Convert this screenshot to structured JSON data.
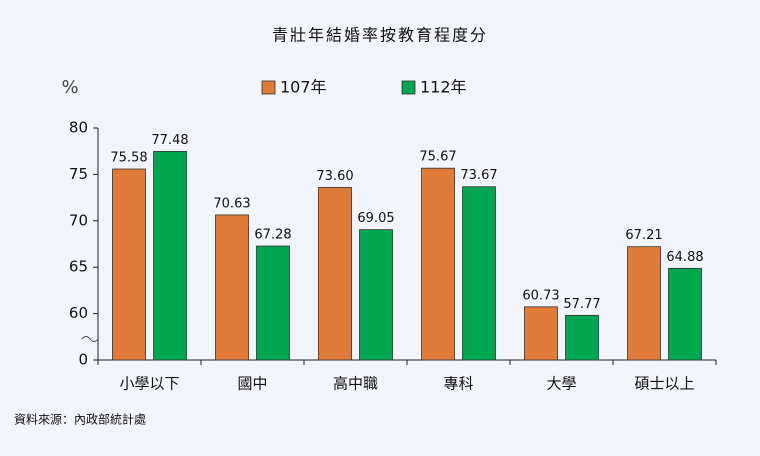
{
  "chart_data": {
    "type": "bar",
    "title": "青壯年結婚率按教育程度分",
    "y_label": "%",
    "categories": [
      "小學以下",
      "國中",
      "高中職",
      "專科",
      "大學",
      "碩士以上"
    ],
    "series": [
      {
        "name": "107年",
        "color": "#e07b39",
        "values": [
          75.58,
          70.63,
          73.6,
          75.67,
          60.73,
          67.21
        ],
        "value_labels": [
          "75.58",
          "70.63",
          "73.60",
          "75.67",
          "60.73",
          "67.21"
        ]
      },
      {
        "name": "112年",
        "color": "#00a650",
        "values": [
          77.48,
          67.28,
          69.05,
          73.67,
          57.77,
          64.88
        ],
        "value_labels": [
          "77.48",
          "67.28",
          "69.05",
          "73.67",
          "57.77",
          "64.88"
        ]
      }
    ],
    "ylim": [
      0,
      80
    ],
    "yticks": [
      0,
      60,
      65,
      70,
      75,
      80
    ],
    "axis_break": true,
    "legend": "top",
    "source": "資料來源：內政部統計處"
  }
}
